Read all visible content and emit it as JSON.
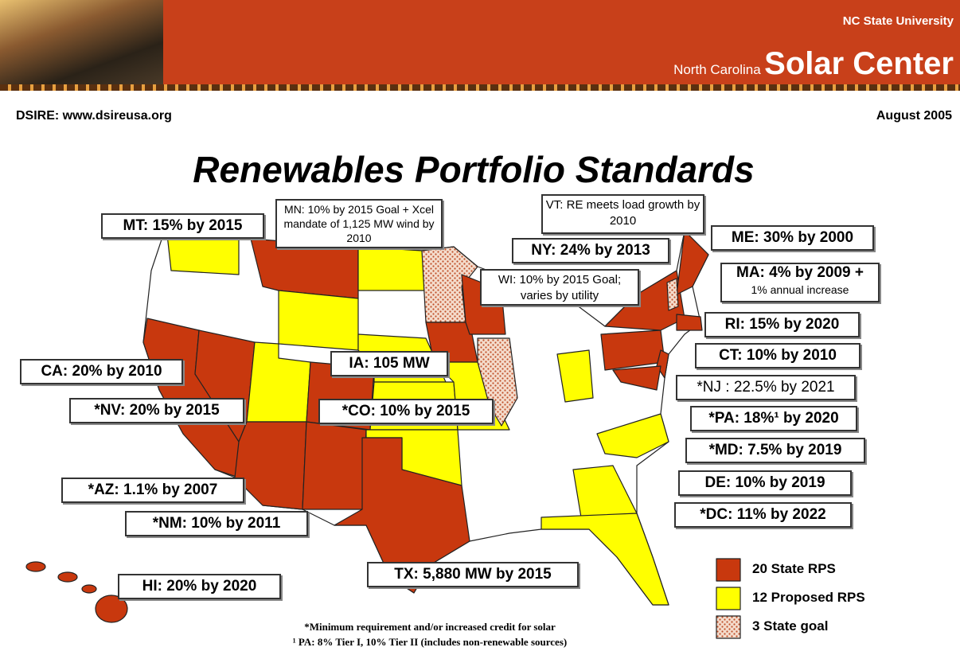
{
  "header": {
    "university": "NC State University",
    "org_prefix": "North Carolina",
    "org_name": "Solar Center"
  },
  "source": "DSIRE: www.dsireusa.org",
  "date": "August 2005",
  "title": "Renewables Portfolio Standards",
  "labels": [
    "MT: 15% by 2015",
    "MN: 10% by 2015 Goal + Xcel mandate of 1,125 MW wind by 2010",
    "VT: RE meets load growth by 2010",
    "ME: 30% by 2000",
    "NY: 24% by 2013",
    "MA: 4% by 2009 +",
    "1% annual increase",
    "WI: 10% by 2015 Goal; varies by utility",
    "RI: 15% by 2020",
    "CT: 10% by 2010",
    "CA: 20% by 2010",
    "IA: 105 MW",
    "*NJ : 22.5% by 2021",
    "*NV: 20% by 2015",
    "*CO: 10% by 2015",
    "*PA: 18%¹ by 2020",
    "*MD: 7.5% by 2019",
    "DE: 10% by 2019",
    "*AZ: 1.1% by 2007",
    "*DC: 11% by 2022",
    "*NM: 10% by 2011",
    "TX: 5,880 MW by 2015",
    "HI: 20% by 2020"
  ],
  "legend": [
    "20 State RPS",
    "12 Proposed RPS",
    "3 State goal"
  ],
  "footnotes": [
    "*Minimum requirement and/or increased credit for solar",
    "¹ PA: 8% Tier I, 10% Tier II (includes non-renewable sources)"
  ]
}
